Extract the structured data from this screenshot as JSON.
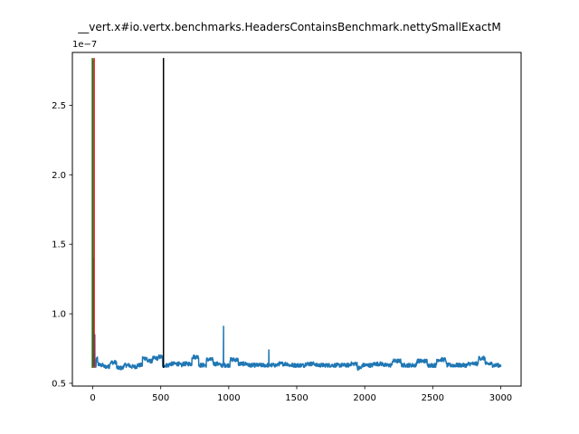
{
  "chart_data": {
    "type": "line",
    "title": "__vert.x#io.vertx.benchmarks.HeadersContainsBenchmark.nettySmallExactM",
    "offset_label": "1e−7",
    "xlim": [
      -150,
      3150
    ],
    "ylim": [
      0.48,
      2.88
    ],
    "x_ticks": [
      {
        "value": 0,
        "label": "0"
      },
      {
        "value": 500,
        "label": "500"
      },
      {
        "value": 1000,
        "label": "1000"
      },
      {
        "value": 1500,
        "label": "1500"
      },
      {
        "value": 2000,
        "label": "2000"
      },
      {
        "value": 2500,
        "label": "2500"
      },
      {
        "value": 3000,
        "label": "3000"
      }
    ],
    "y_ticks": [
      {
        "value": 0.5,
        "label": "0.5"
      },
      {
        "value": 1.0,
        "label": "1.0"
      },
      {
        "value": 1.5,
        "label": "1.5"
      },
      {
        "value": 2.0,
        "label": "2.0"
      },
      {
        "value": 2.5,
        "label": "2.5"
      }
    ],
    "series": [
      {
        "color": "#1f77b4",
        "x_range": [
          0,
          3000
        ],
        "baseline": 0.63,
        "points": [
          [
            0,
            2.83
          ],
          [
            3,
            1.4
          ],
          [
            6,
            0.63
          ],
          [
            15,
            0.85
          ],
          [
            22,
            0.62
          ],
          [
            30,
            0.68
          ],
          [
            40,
            0.64
          ],
          [
            60,
            0.63
          ],
          [
            100,
            0.62
          ],
          [
            150,
            0.65
          ],
          [
            200,
            0.61
          ],
          [
            250,
            0.63
          ],
          [
            300,
            0.62
          ],
          [
            350,
            0.63
          ],
          [
            380,
            0.68
          ],
          [
            420,
            0.66
          ],
          [
            460,
            0.68
          ],
          [
            510,
            0.69
          ],
          [
            515,
            0.63
          ],
          [
            600,
            0.64
          ],
          [
            700,
            0.64
          ],
          [
            760,
            0.69
          ],
          [
            800,
            0.63
          ],
          [
            870,
            0.67
          ],
          [
            900,
            0.64
          ],
          [
            962,
            0.91
          ],
          [
            980,
            0.63
          ],
          [
            1040,
            0.67
          ],
          [
            1100,
            0.64
          ],
          [
            1200,
            0.63
          ],
          [
            1295,
            0.74
          ],
          [
            1310,
            0.63
          ],
          [
            1400,
            0.64
          ],
          [
            1500,
            0.63
          ],
          [
            1600,
            0.64
          ],
          [
            1700,
            0.63
          ],
          [
            1800,
            0.63
          ],
          [
            1930,
            0.64
          ],
          [
            1960,
            0.61
          ],
          [
            2000,
            0.63
          ],
          [
            2100,
            0.64
          ],
          [
            2240,
            0.66
          ],
          [
            2300,
            0.63
          ],
          [
            2420,
            0.66
          ],
          [
            2500,
            0.63
          ],
          [
            2560,
            0.67
          ],
          [
            2700,
            0.63
          ],
          [
            2800,
            0.64
          ],
          [
            2870,
            0.68
          ],
          [
            2900,
            0.64
          ],
          [
            3000,
            0.63
          ]
        ]
      }
    ],
    "vertical_lines": [
      {
        "x": -3,
        "color": "#008000",
        "ymin": 0.61,
        "ymax": 2.84
      },
      {
        "x": 10,
        "color": "#ff0000",
        "ymin": 0.61,
        "ymax": 2.84
      },
      {
        "x": 520,
        "color": "#000000",
        "ymin": 0.61,
        "ymax": 2.84
      }
    ]
  }
}
